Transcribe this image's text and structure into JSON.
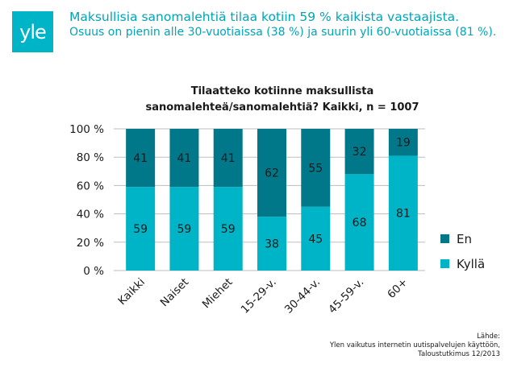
{
  "brand": {
    "logo_text": "yle",
    "logo_color": "#00b4c8"
  },
  "headline": {
    "line1": "Maksullisia sanomalehtiä tilaa kotiin 59 % kaikista vastaajista.",
    "line2": "Osuus on pienin alle 30-vuotiaissa (38 %) ja suurin yli 60-vuotiaissa (81 %)."
  },
  "chart_data": {
    "type": "bar",
    "stacked": true,
    "title_line1": "Tilaatteko kotiinne maksullista",
    "title_line2": "sanomalehteä/sanomalehtiä? Kaikki, n = 1007",
    "categories": [
      "Kaikki",
      "Naiset",
      "Miehet",
      "15-29-v.",
      "30-44-v.",
      "45-59-v.",
      "60+"
    ],
    "series": [
      {
        "name": "Kyllä",
        "color": "#00b4c8",
        "values": [
          59,
          59,
          59,
          38,
          45,
          68,
          81
        ]
      },
      {
        "name": "En",
        "color": "#00788a",
        "values": [
          41,
          41,
          41,
          62,
          55,
          32,
          19
        ]
      }
    ],
    "yticks": [
      "0 %",
      "20 %",
      "40 %",
      "60 %",
      "80 %",
      "100 %"
    ],
    "ylim": [
      0,
      100
    ],
    "legend_position": "right",
    "grid": true
  },
  "source": {
    "line1": "Lähde:",
    "line2": "Ylen vaikutus internetin uutispalvelujen käyttöön,",
    "line3": "Taloustutkimus 12/2013"
  }
}
